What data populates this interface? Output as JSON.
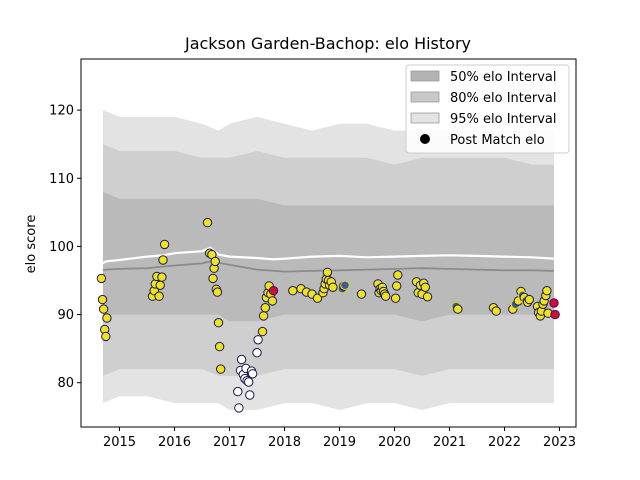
{
  "chart_data": {
    "type": "scatter",
    "title": "Jackson Garden-Bachop: elo History",
    "xlabel": "",
    "ylabel": "elo score",
    "xlim": [
      2014.3,
      2023.3
    ],
    "ylim": [
      73.5,
      127.5
    ],
    "xticks": [
      2015,
      2016,
      2017,
      2018,
      2019,
      2020,
      2021,
      2022,
      2023
    ],
    "xtick_labels": [
      "2015",
      "2016",
      "2017",
      "2018",
      "2019",
      "2020",
      "2021",
      "2022",
      "2023"
    ],
    "yticks": [
      80,
      90,
      100,
      110,
      120
    ],
    "ytick_labels": [
      "80",
      "90",
      "100",
      "110",
      "120"
    ],
    "legend_position": "top-right",
    "legend": [
      {
        "label": "50% elo Interval",
        "kind": "band",
        "color": "#b3b3b3"
      },
      {
        "label": "80% elo Interval",
        "kind": "band",
        "color": "#c8c8c8"
      },
      {
        "label": "95% elo Interval",
        "kind": "band",
        "color": "#e3e3e3"
      },
      {
        "label": "Post Match elo",
        "kind": "marker",
        "color": "#000000"
      }
    ],
    "bands": {
      "x": [
        2014.7,
        2015.0,
        2015.5,
        2016.0,
        2016.5,
        2016.8,
        2017.0,
        2017.5,
        2018.0,
        2018.5,
        2019.0,
        2019.5,
        2020.0,
        2020.5,
        2021.0,
        2021.5,
        2022.0,
        2022.5,
        2022.9
      ],
      "p95_hi": [
        120,
        119,
        119,
        119,
        118,
        117,
        118,
        119,
        118,
        117,
        118,
        118,
        117,
        117,
        117,
        117,
        117,
        117,
        117
      ],
      "p95_lo": [
        77,
        78,
        78,
        77,
        77,
        77,
        76,
        76,
        77,
        77,
        76,
        77,
        77,
        76,
        77,
        77,
        77,
        77,
        77
      ],
      "p80_hi": [
        115,
        114,
        114,
        114,
        113,
        113,
        113,
        114,
        113,
        113,
        113,
        113,
        112,
        113,
        113,
        113,
        113,
        112,
        112
      ],
      "p80_lo": [
        81,
        82,
        82,
        82,
        82,
        81,
        81,
        81,
        82,
        82,
        82,
        82,
        82,
        81,
        82,
        82,
        82,
        82,
        82
      ],
      "p50_hi": [
        108,
        107,
        107,
        107,
        107,
        107,
        107,
        107,
        106,
        106,
        106,
        106,
        106,
        106,
        106,
        106,
        106,
        106,
        106
      ],
      "p50_lo": [
        90,
        90,
        90,
        90,
        90,
        90,
        89,
        89,
        90,
        90,
        90,
        90,
        90,
        89,
        90,
        90,
        90,
        90,
        90
      ]
    },
    "white_line": {
      "x": [
        2014.7,
        2014.75,
        2015.0,
        2015.5,
        2015.8,
        2016.0,
        2016.5,
        2016.65,
        2016.8,
        2017.0,
        2017.5,
        2017.8,
        2018.0,
        2018.5,
        2019.0,
        2019.5,
        2020.0,
        2020.5,
        2021.0,
        2021.5,
        2022.0,
        2022.5,
        2022.9
      ],
      "y": [
        97.5,
        97.8,
        98.0,
        98.5,
        98.7,
        99.0,
        99.3,
        99.8,
        98.8,
        98.5,
        98.3,
        98.1,
        98.2,
        98.5,
        98.6,
        98.4,
        98.5,
        98.6,
        98.7,
        98.6,
        98.5,
        98.4,
        98.2
      ]
    },
    "gray_line": {
      "x": [
        2014.7,
        2014.75,
        2015.0,
        2015.5,
        2016.0,
        2016.5,
        2016.65,
        2016.8,
        2017.0,
        2017.5,
        2018.0,
        2018.5,
        2019.0,
        2019.5,
        2020.0,
        2020.5,
        2021.0,
        2021.5,
        2022.0,
        2022.5,
        2022.9
      ],
      "y": [
        96.5,
        96.6,
        96.7,
        96.8,
        97.2,
        97.5,
        97.8,
        97.6,
        97.3,
        96.6,
        96.3,
        96.4,
        96.5,
        96.6,
        96.7,
        96.8,
        96.7,
        96.6,
        96.5,
        96.5,
        96.4
      ]
    },
    "series": [
      {
        "name": "Post Match elo",
        "points": [
          [
            2014.67,
            95.3,
            "y"
          ],
          [
            2014.69,
            92.2,
            "y"
          ],
          [
            2014.71,
            90.8,
            "y"
          ],
          [
            2014.73,
            87.8,
            "y"
          ],
          [
            2014.75,
            86.8,
            "y"
          ],
          [
            2014.77,
            89.5,
            "y"
          ],
          [
            2015.6,
            92.7,
            "y"
          ],
          [
            2015.63,
            93.5,
            "y"
          ],
          [
            2015.65,
            94.5,
            "y"
          ],
          [
            2015.68,
            95.6,
            "y"
          ],
          [
            2015.72,
            92.7,
            "y"
          ],
          [
            2015.74,
            94.3,
            "y"
          ],
          [
            2015.77,
            95.5,
            "y"
          ],
          [
            2015.79,
            98.0,
            "y"
          ],
          [
            2015.82,
            100.3,
            "y"
          ],
          [
            2016.6,
            103.5,
            "y"
          ],
          [
            2016.64,
            99.0,
            "y"
          ],
          [
            2016.68,
            98.8,
            "y"
          ],
          [
            2016.7,
            95.3,
            "y"
          ],
          [
            2016.72,
            96.8,
            "y"
          ],
          [
            2016.74,
            97.8,
            "y"
          ],
          [
            2016.76,
            93.7,
            "y"
          ],
          [
            2016.78,
            93.3,
            "y"
          ],
          [
            2016.8,
            88.8,
            "y"
          ],
          [
            2016.82,
            85.3,
            "y"
          ],
          [
            2016.84,
            82.0,
            "y"
          ],
          [
            2017.15,
            78.7,
            "w"
          ],
          [
            2017.17,
            76.3,
            "w"
          ],
          [
            2017.2,
            81.8,
            "w"
          ],
          [
            2017.22,
            83.4,
            "w"
          ],
          [
            2017.25,
            81.2,
            "w"
          ],
          [
            2017.28,
            80.6,
            "w"
          ],
          [
            2017.3,
            82.1,
            "w"
          ],
          [
            2017.32,
            80.3,
            "w"
          ],
          [
            2017.35,
            80.1,
            "w"
          ],
          [
            2017.37,
            78.2,
            "w"
          ],
          [
            2017.4,
            81.7,
            "w"
          ],
          [
            2017.42,
            81.3,
            "w"
          ],
          [
            2017.5,
            84.4,
            "w"
          ],
          [
            2017.52,
            86.3,
            "w"
          ],
          [
            2017.6,
            87.5,
            "y"
          ],
          [
            2017.62,
            89.8,
            "y"
          ],
          [
            2017.65,
            91.0,
            "y"
          ],
          [
            2017.67,
            92.5,
            "y"
          ],
          [
            2017.7,
            93.2,
            "y"
          ],
          [
            2017.72,
            94.2,
            "y"
          ],
          [
            2017.75,
            93.0,
            "y"
          ],
          [
            2017.78,
            92.0,
            "y"
          ],
          [
            2017.8,
            93.5,
            "r"
          ],
          [
            2018.15,
            93.5,
            "y"
          ],
          [
            2018.3,
            93.8,
            "y"
          ],
          [
            2018.4,
            93.3,
            "y"
          ],
          [
            2018.5,
            93.0,
            "y"
          ],
          [
            2018.6,
            92.4,
            "y"
          ],
          [
            2018.7,
            93.2,
            "y"
          ],
          [
            2018.72,
            93.8,
            "y"
          ],
          [
            2018.74,
            94.5,
            "y"
          ],
          [
            2018.76,
            95.2,
            "y"
          ],
          [
            2018.78,
            96.2,
            "y"
          ],
          [
            2018.8,
            95.0,
            "y"
          ],
          [
            2018.82,
            94.3,
            "y"
          ],
          [
            2018.85,
            94.8,
            "y"
          ],
          [
            2018.88,
            94.0,
            "y"
          ],
          [
            2019.05,
            93.8,
            "b"
          ],
          [
            2019.08,
            94.2,
            "y"
          ],
          [
            2019.1,
            94.3,
            "b"
          ],
          [
            2019.4,
            93.0,
            "y"
          ],
          [
            2019.7,
            94.5,
            "y"
          ],
          [
            2019.72,
            93.2,
            "y"
          ],
          [
            2019.74,
            93.8,
            "y"
          ],
          [
            2019.76,
            93.5,
            "y"
          ],
          [
            2019.78,
            94.0,
            "y"
          ],
          [
            2019.8,
            93.4,
            "y"
          ],
          [
            2019.82,
            93.0,
            "y"
          ],
          [
            2019.84,
            92.7,
            "y"
          ],
          [
            2020.02,
            92.4,
            "y"
          ],
          [
            2020.04,
            94.2,
            "y"
          ],
          [
            2020.06,
            95.8,
            "y"
          ],
          [
            2020.4,
            94.8,
            "y"
          ],
          [
            2020.43,
            93.2,
            "y"
          ],
          [
            2020.47,
            94.3,
            "y"
          ],
          [
            2020.5,
            93.0,
            "y"
          ],
          [
            2020.53,
            94.6,
            "y"
          ],
          [
            2020.56,
            94.0,
            "y"
          ],
          [
            2020.6,
            92.6,
            "y"
          ],
          [
            2021.12,
            91.2,
            "b"
          ],
          [
            2021.15,
            90.8,
            "y"
          ],
          [
            2021.8,
            91.0,
            "y"
          ],
          [
            2021.85,
            90.5,
            "y"
          ],
          [
            2022.15,
            90.8,
            "y"
          ],
          [
            2022.2,
            91.5,
            "b"
          ],
          [
            2022.25,
            92.0,
            "y"
          ],
          [
            2022.3,
            93.4,
            "y"
          ],
          [
            2022.33,
            92.8,
            "b"
          ],
          [
            2022.36,
            92.5,
            "y"
          ],
          [
            2022.39,
            92.0,
            "b"
          ],
          [
            2022.42,
            91.8,
            "y"
          ],
          [
            2022.45,
            92.2,
            "y"
          ],
          [
            2022.6,
            91.2,
            "y"
          ],
          [
            2022.62,
            90.3,
            "y"
          ],
          [
            2022.65,
            89.8,
            "y"
          ],
          [
            2022.67,
            90.5,
            "y"
          ],
          [
            2022.7,
            91.5,
            "y"
          ],
          [
            2022.72,
            92.0,
            "y"
          ],
          [
            2022.75,
            92.8,
            "y"
          ],
          [
            2022.77,
            93.5,
            "y"
          ],
          [
            2022.79,
            90.2,
            "y"
          ],
          [
            2022.9,
            91.7,
            "r"
          ],
          [
            2022.92,
            90.0,
            "r"
          ]
        ]
      }
    ]
  },
  "style": {
    "band95": "#e3e3e3",
    "band80": "#cfcfcf",
    "band50": "#bababa",
    "gray_line": "#8c8c8c",
    "white_line": "#ffffff",
    "marker_fill_y": "#f0e21d",
    "marker_fill_w": "#ffffff",
    "marker_fill_b": "#3a5a9a",
    "marker_fill_r": "#cc1133",
    "marker_edge_y": "#1a1a5a",
    "marker_edge_w": "#1a1a4a",
    "marker_edge_b": "#e6d414",
    "marker_edge_r": "#4a0a5a",
    "legend_marker": "#000000"
  }
}
